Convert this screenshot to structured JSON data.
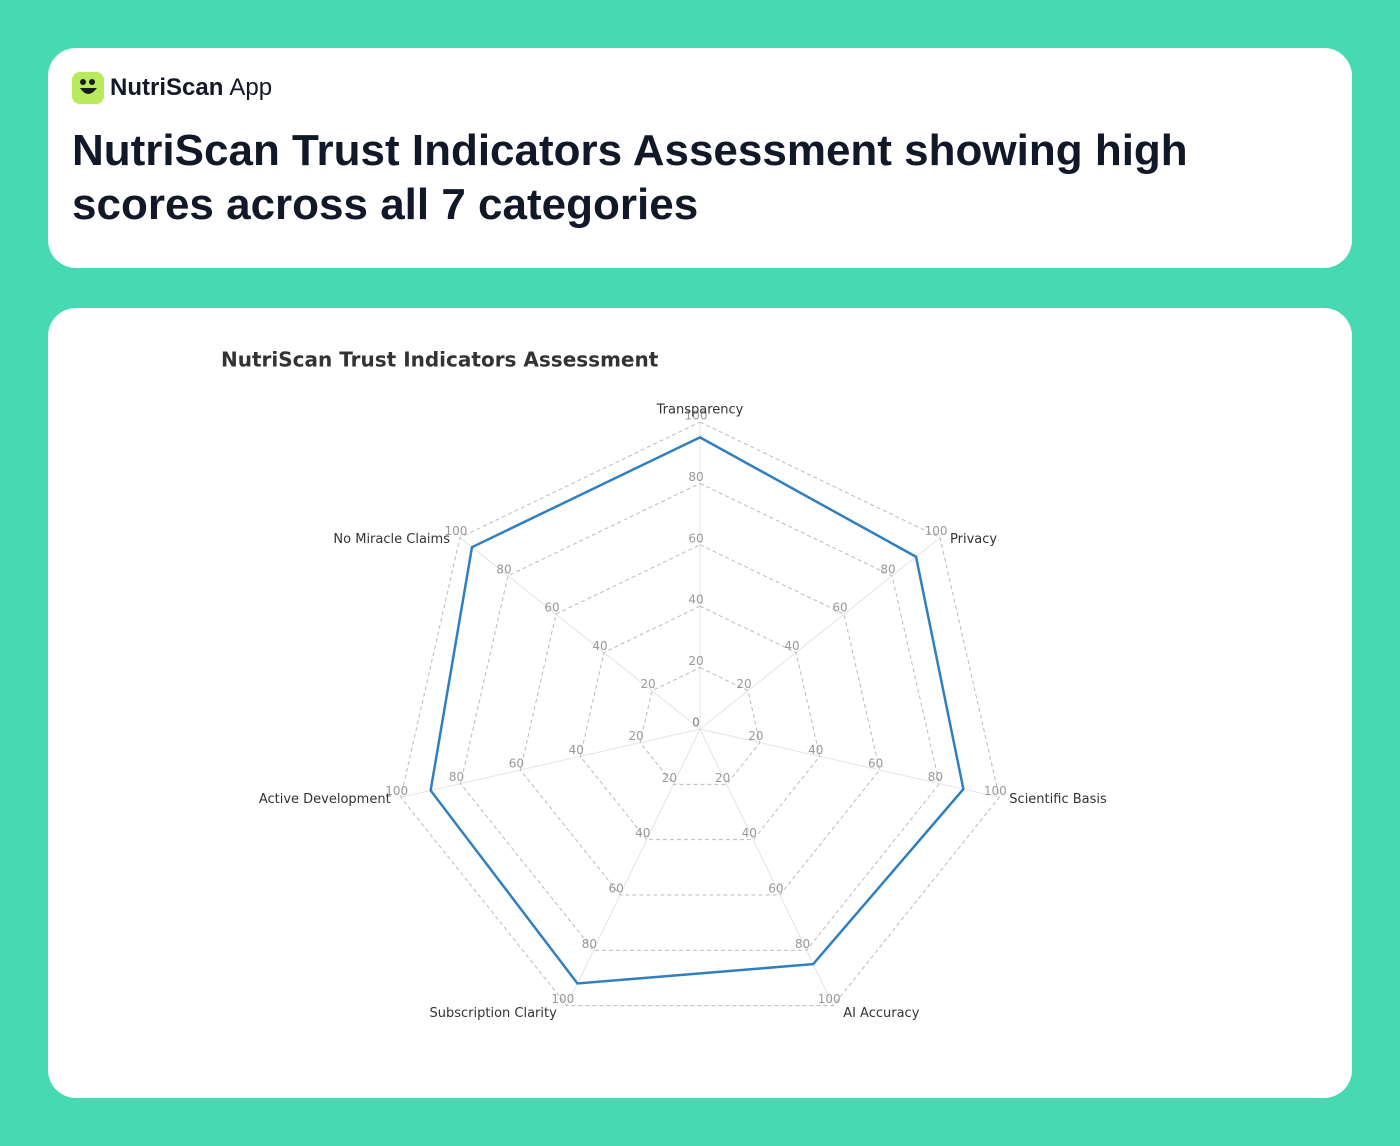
{
  "header": {
    "brand": "NutriScan",
    "brand_suffix": "App",
    "title": "NutriScan Trust Indicators Assessment showing high scores across all 7 categories"
  },
  "chart_data": {
    "type": "radar",
    "title": "NutriScan Trust Indicators Assessment",
    "categories": [
      "Transparency",
      "Privacy",
      "Scientific Basis",
      "AI Accuracy",
      "Subscription Clarity",
      "Active Development",
      "No Miracle Claims"
    ],
    "values": [
      95,
      90,
      88,
      85,
      92,
      90,
      95
    ],
    "color": "#2f7fc1",
    "ylim": [
      0,
      100
    ],
    "yticks": [
      0,
      20,
      40,
      60,
      80,
      100
    ],
    "grid": true
  }
}
